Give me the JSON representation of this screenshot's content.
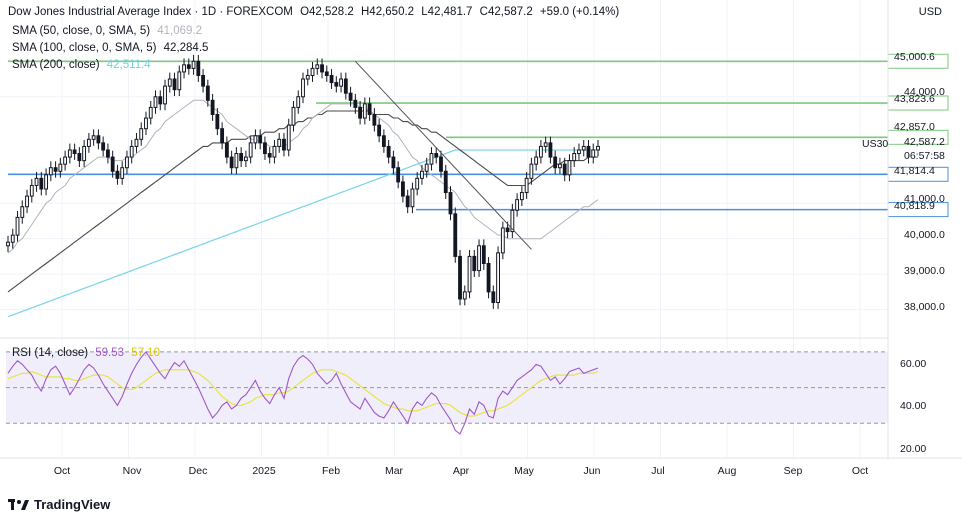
{
  "header": {
    "title": "Dow Jones Industrial Average Index · 1D · FOREXCOM",
    "o_label": "O",
    "o_value": "42,528.2",
    "h_label": "H",
    "h_value": "42,650.2",
    "l_label": "L",
    "l_value": "42,481.7",
    "c_label": "C",
    "c_value": "42,587.2",
    "change": "+59.0 (+0.14%)",
    "sma50_label": "SMA (50, close, 0, SMA, 5)",
    "sma50_value": "41,069.2",
    "sma100_label": "SMA (100, close, 0, SMA, 5)",
    "sma100_value": "42,284.5",
    "sma200_label": "SMA (200, close)",
    "sma200_value": "42,511.4"
  },
  "currency": "USD",
  "symbol": "US30",
  "price_tag": {
    "price": "42,587.2",
    "countdown": "06:57:58"
  },
  "levels": [
    {
      "value": "45,000.6",
      "color": "#7ec97e"
    },
    {
      "value": "43,823.6",
      "color": "#7ec97e"
    },
    {
      "value": "42,857.0",
      "color": "#7ec97e"
    },
    {
      "value": "41,814.4",
      "color": "#4a90e2"
    },
    {
      "value": "40,818.9",
      "color": "#4a90e2"
    }
  ],
  "y_ticks": [
    "44,000.0",
    "41,000.0",
    "40,000.0",
    "39,000.0",
    "38,000.0"
  ],
  "rsi": {
    "label": "RSI (14, close)",
    "value": "59.53",
    "signal": "57.10",
    "ticks": [
      "60.00",
      "40.00",
      "20.00"
    ]
  },
  "x_labels": [
    "Oct",
    "Nov",
    "Dec",
    "2025",
    "Feb",
    "Mar",
    "Apr",
    "May",
    "Jun",
    "Jul",
    "Aug",
    "Sep",
    "Oct"
  ],
  "brand": "TradingView",
  "colors": {
    "up": "#131722",
    "sma50": "#b0b3b8",
    "sma100": "#4a4a4a",
    "sma200": "#7fd6e8",
    "rsi": "#9c5ac7",
    "rsi_ma": "#e8e23a",
    "rsi_bg": "#f1eefb"
  },
  "chart_data": {
    "type": "candlestick",
    "price_ylim": [
      37200,
      45600
    ],
    "dates_start": "2024-09-16",
    "closes": [
      39900,
      40100,
      40600,
      40900,
      41200,
      41500,
      41700,
      41400,
      41800,
      42000,
      41900,
      42100,
      42300,
      42500,
      42400,
      42200,
      42600,
      42800,
      42900,
      42700,
      42500,
      42300,
      41900,
      41700,
      42000,
      42300,
      42600,
      42800,
      43100,
      43400,
      43700,
      44000,
      43800,
      44300,
      44500,
      44200,
      44700,
      44900,
      44800,
      45000,
      44600,
      44300,
      43900,
      43500,
      43100,
      42700,
      42300,
      42000,
      42400,
      42200,
      42300,
      42700,
      42900,
      42700,
      42400,
      42300,
      42600,
      42800,
      42500,
      43200,
      43700,
      44000,
      44500,
      44600,
      44800,
      44900,
      44700,
      44600,
      44400,
      44300,
      44500,
      44100,
      43900,
      43700,
      43400,
      43800,
      43500,
      43200,
      42900,
      42600,
      42300,
      42000,
      41600,
      41200,
      40900,
      41400,
      41700,
      41900,
      42100,
      42400,
      42300,
      41900,
      41300,
      40700,
      39500,
      38300,
      38500,
      39500,
      39100,
      39800,
      39300,
      38500,
      38200,
      39600,
      40300,
      40200,
      40800,
      41100,
      41300,
      41700,
      42100,
      42300,
      42600,
      42700,
      42300,
      42000,
      42100,
      41800,
      42200,
      42400,
      42500,
      42600,
      42300,
      42500,
      42600
    ],
    "sma50": [
      39600,
      39700,
      39900,
      40000,
      40200,
      40400,
      40600,
      40800,
      41000,
      41100,
      41300,
      41400,
      41500,
      41700,
      41800,
      41900,
      42000,
      42100,
      42200,
      42300,
      42300,
      42300,
      42200,
      42200,
      42200,
      42300,
      42300,
      42400,
      42500,
      42600,
      42800,
      43000,
      43100,
      43300,
      43400,
      43500,
      43600,
      43700,
      43800,
      43900,
      43900,
      43900,
      43800,
      43700,
      43600,
      43500,
      43300,
      43200,
      43100,
      43000,
      42900,
      42800,
      42800,
      42700,
      42700,
      42600,
      42600,
      42600,
      42600,
      42700,
      42800,
      42900,
      43100,
      43200,
      43400,
      43500,
      43600,
      43700,
      43800,
      43800,
      43800,
      43800,
      43800,
      43800,
      43700,
      43700,
      43600,
      43500,
      43400,
      43300,
      43200,
      43000,
      42900,
      42700,
      42500,
      42300,
      42200,
      42000,
      41900,
      41800,
      41700,
      41600,
      41500,
      41400,
      41300,
      41100,
      40900,
      40800,
      40600,
      40500,
      40400,
      40300,
      40200,
      40100,
      40100,
      40000,
      40000,
      40000,
      40000,
      40000,
      40000,
      40000,
      40000,
      40100,
      40200,
      40300,
      40400,
      40500,
      40600,
      40700,
      40800,
      40900,
      40900,
      41000,
      41100
    ],
    "sma100": [
      38500,
      38600,
      38700,
      38800,
      38900,
      39000,
      39100,
      39200,
      39300,
      39400,
      39500,
      39600,
      39700,
      39800,
      39900,
      40000,
      40100,
      40200,
      40300,
      40400,
      40500,
      40600,
      40700,
      40800,
      40900,
      41000,
      41100,
      41200,
      41300,
      41400,
      41500,
      41600,
      41700,
      41800,
      41900,
      42000,
      42100,
      42200,
      42300,
      42400,
      42500,
      42600,
      42600,
      42700,
      42700,
      42700,
      42700,
      42800,
      42800,
      42800,
      42800,
      42900,
      42900,
      42900,
      43000,
      43000,
      43000,
      43100,
      43100,
      43200,
      43200,
      43300,
      43300,
      43400,
      43400,
      43500,
      43500,
      43600,
      43600,
      43600,
      43600,
      43600,
      43600,
      43600,
      43600,
      43600,
      43600,
      43500,
      43500,
      43500,
      43500,
      43400,
      43400,
      43300,
      43300,
      43200,
      43200,
      43100,
      43100,
      43000,
      43000,
      42900,
      42800,
      42700,
      42600,
      42500,
      42400,
      42300,
      42200,
      42100,
      42000,
      41900,
      41800,
      41700,
      41600,
      41500,
      41500,
      41500,
      41500,
      41500,
      41600,
      41700,
      41800,
      41900,
      42000,
      42100,
      42100,
      42200,
      42200,
      42200,
      42200,
      42200,
      42300,
      42300,
      42300
    ],
    "sma200": [
      37800,
      37850,
      37900,
      37950,
      38000,
      38050,
      38100,
      38150,
      38200,
      38250,
      38300,
      38350,
      38400,
      38450,
      38500,
      38550,
      38600,
      38650,
      38700,
      38750,
      38800,
      38850,
      38900,
      38950,
      39000,
      39050,
      39100,
      39150,
      39200,
      39250,
      39300,
      39350,
      39400,
      39450,
      39500,
      39550,
      39600,
      39650,
      39700,
      39750,
      39800,
      39850,
      39900,
      39950,
      40000,
      40050,
      40100,
      40150,
      40200,
      40250,
      40300,
      40350,
      40400,
      40450,
      40500,
      40550,
      40600,
      40650,
      40700,
      40750,
      40800,
      40850,
      40900,
      40950,
      41000,
      41050,
      41100,
      41150,
      41200,
      41250,
      41300,
      41350,
      41400,
      41450,
      41500,
      41550,
      41600,
      41650,
      41700,
      41750,
      41800,
      41850,
      41900,
      41950,
      42000,
      42050,
      42100,
      42150,
      42200,
      42250,
      42300,
      42350,
      42400,
      42450,
      42500,
      42500,
      42500,
      42500,
      42500,
      42500,
      42500,
      42500,
      42500,
      42500,
      42500,
      42500,
      42500,
      42500,
      42500,
      42500,
      42500,
      42500,
      42500,
      42500,
      42500,
      42500,
      42500,
      42500,
      42500,
      42500,
      42500,
      42500,
      42500,
      42500,
      42500
    ],
    "rsi_values": [
      58,
      62,
      65,
      63,
      60,
      57,
      52,
      48,
      55,
      60,
      62,
      58,
      52,
      46,
      50,
      55,
      60,
      63,
      61,
      57,
      52,
      48,
      44,
      40,
      45,
      52,
      58,
      63,
      67,
      70,
      66,
      62,
      58,
      55,
      60,
      64,
      62,
      65,
      60,
      55,
      50,
      44,
      38,
      33,
      36,
      40,
      42,
      38,
      40,
      44,
      46,
      50,
      54,
      48,
      44,
      41,
      46,
      50,
      44,
      55,
      62,
      66,
      68,
      66,
      63,
      58,
      55,
      52,
      54,
      58,
      52,
      47,
      42,
      40,
      38,
      44,
      40,
      36,
      34,
      33,
      37,
      42,
      38,
      34,
      30,
      38,
      42,
      40,
      44,
      47,
      45,
      40,
      36,
      32,
      26,
      24,
      30,
      38,
      35,
      42,
      40,
      34,
      33,
      44,
      48,
      46,
      50,
      54,
      56,
      58,
      60,
      63,
      62,
      58,
      54,
      56,
      52,
      55,
      59,
      60,
      61,
      58,
      59,
      60,
      61
    ],
    "rsi_ma_values": [
      55,
      56,
      57,
      58,
      58,
      59,
      58,
      57,
      56,
      56,
      56,
      56,
      55,
      55,
      54,
      54,
      55,
      56,
      57,
      57,
      57,
      56,
      54,
      52,
      50,
      49,
      49,
      50,
      52,
      54,
      56,
      58,
      59,
      60,
      60,
      60,
      60,
      60,
      60,
      59,
      58,
      56,
      54,
      51,
      48,
      45,
      43,
      41,
      40,
      40,
      41,
      42,
      44,
      45,
      46,
      46,
      46,
      47,
      47,
      48,
      50,
      52,
      54,
      56,
      58,
      59,
      60,
      60,
      60,
      59,
      58,
      57,
      55,
      53,
      51,
      49,
      47,
      45,
      43,
      41,
      40,
      39,
      38,
      38,
      37,
      37,
      37,
      38,
      39,
      40,
      41,
      41,
      41,
      40,
      38,
      36,
      35,
      34,
      34,
      35,
      36,
      37,
      37,
      38,
      39,
      40,
      42,
      44,
      46,
      48,
      50,
      52,
      54,
      55,
      56,
      57,
      57,
      57,
      57,
      57,
      58,
      58,
      58,
      58,
      59
    ],
    "rsi_ylim": [
      15,
      75
    ],
    "trendline": {
      "from_index": 73,
      "from_value": 45000,
      "to_index": 110,
      "to_value": 39700
    }
  }
}
